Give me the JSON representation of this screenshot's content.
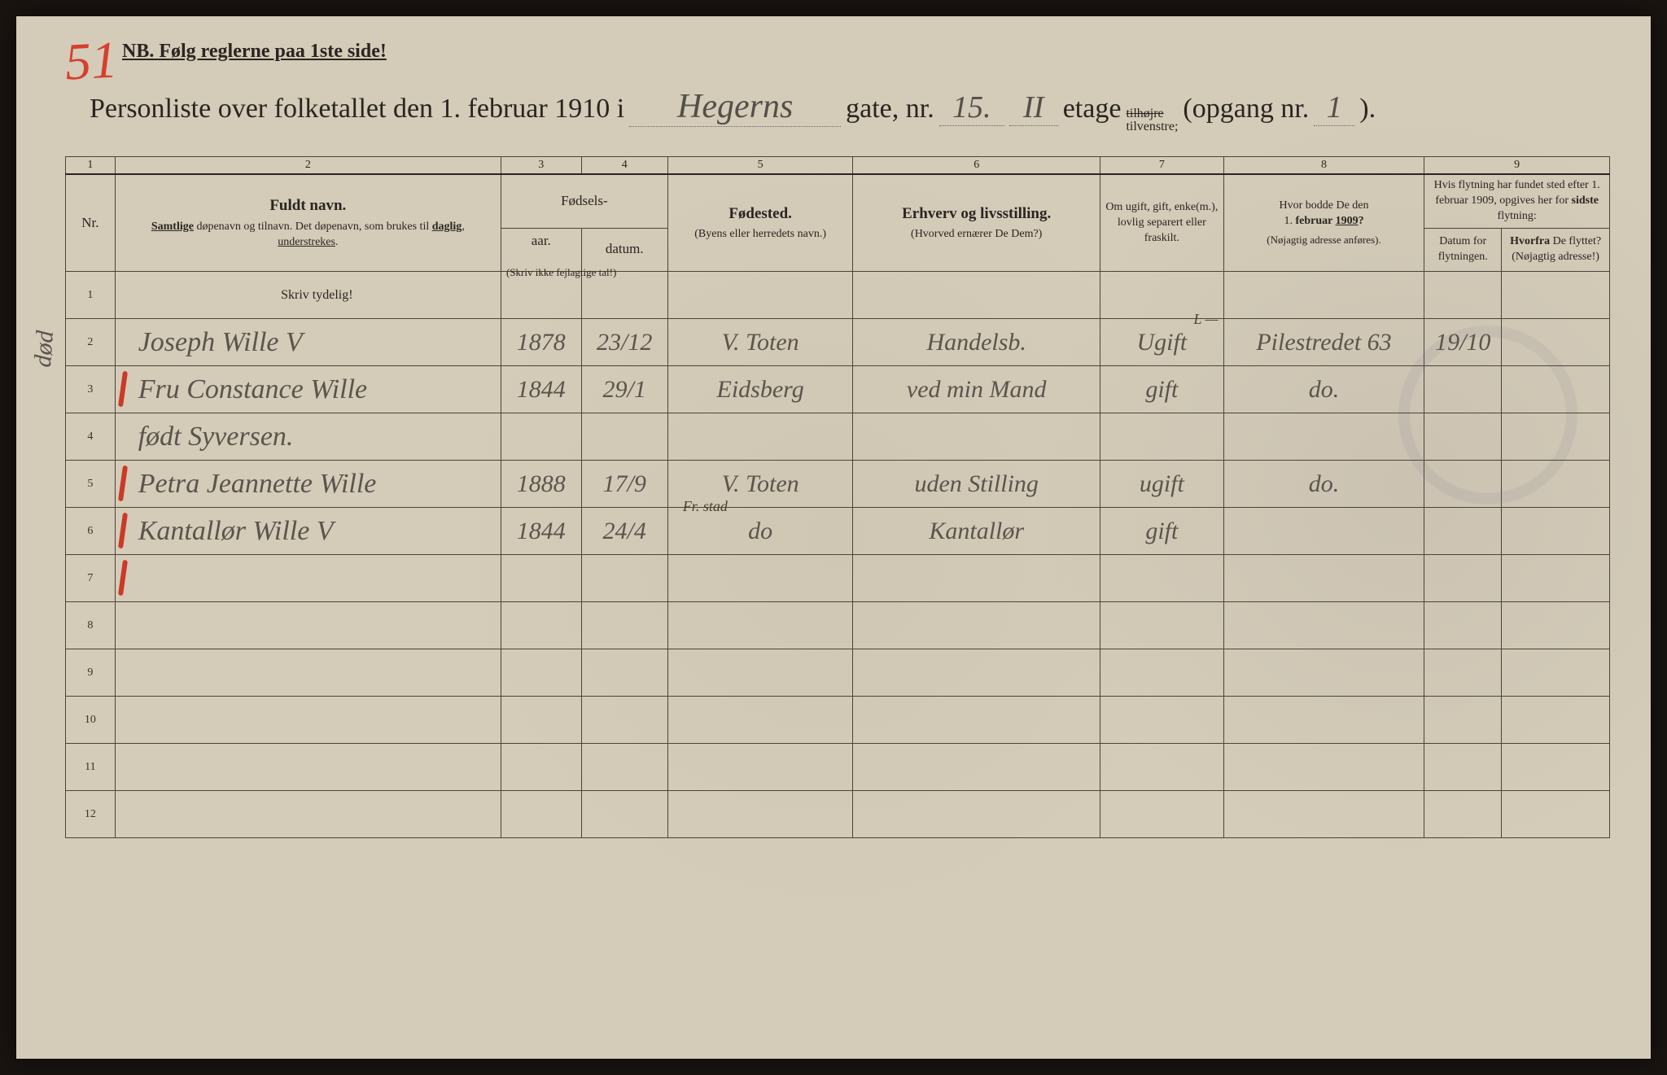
{
  "page_number_red": "51",
  "nb_text": "NB.  Følg reglerne paa 1ste side!",
  "title": {
    "pre": "Personliste over folketallet den 1. februar 1910 i",
    "street": "Hegerns",
    "gate_label": "gate, nr.",
    "house_nr": "15.",
    "etage": "II",
    "etage_label": "etage",
    "side_top": "tilhøjre",
    "side_bottom": "tilvenstre;",
    "opgang_label": "(opgang nr.",
    "opgang": "1",
    "close": ")."
  },
  "columns": {
    "c1": "1",
    "c2": "2",
    "c3": "3",
    "c4": "4",
    "c5": "5",
    "c6": "6",
    "c7": "7",
    "c8": "8",
    "c9": "9"
  },
  "headers": {
    "nr": "Nr.",
    "name_main": "Fuldt navn.",
    "name_sub": "Samtlige døpenavn og tilnavn. Det døpenavn, som brukes til daglig, understrekes.",
    "fodsels": "Fødsels-",
    "aar": "aar.",
    "datum": "datum.",
    "skriv_ikke": "(Skriv ikke fejlagtige tal!)",
    "fodested_main": "Fødested.",
    "fodested_sub": "(Byens eller herredets navn.)",
    "erhverv_main": "Erhverv og livsstilling.",
    "erhverv_sub": "(Hvorved ernærer De Dem?)",
    "civil": "Om ugift, gift, enke(m.), lovlig separert eller fraskilt.",
    "hvor_main": "Hvor bodde De den 1. februar 1909?",
    "hvor_sub": "(Nøjagtig adresse anføres).",
    "flyt_main": "Hvis flytning har fundet sted efter 1. februar 1909, opgives her for sidste flytning:",
    "flyt_datum": "Datum for flytningen.",
    "flyt_hvorfra": "Hvorfra De flyttet? (Nøjagtig adresse!)"
  },
  "skriv_tydelig": "Skriv tydelig!",
  "rows": [
    {
      "nr": "1",
      "name": "",
      "aar": "",
      "datum": "",
      "sted": "",
      "erhverv": "",
      "civil": "",
      "hvor": "",
      "flyt_d": "",
      "flyt_h": ""
    },
    {
      "nr": "2",
      "name": "Joseph Wille",
      "name_suffix": "V",
      "aar": "1878",
      "datum": "23/12",
      "sted": "V. Toten",
      "erhverv": "Handelsb.",
      "civil": "Ugift",
      "civil_note": "L —",
      "hvor": "Pilestredet 63",
      "flyt_d": "19/10",
      "flyt_h": "",
      "tick": false
    },
    {
      "nr": "3",
      "name": "Fru Constance Wille",
      "aar": "1844",
      "datum": "29/1",
      "sted": "Eidsberg",
      "erhverv": "ved min Mand",
      "civil": "gift",
      "hvor": "do.",
      "flyt_d": "",
      "flyt_h": "",
      "tick": true
    },
    {
      "nr": "4",
      "name": "født Syversen.",
      "aar": "",
      "datum": "",
      "sted": "",
      "erhverv": "",
      "civil": "",
      "hvor": "",
      "flyt_d": "",
      "flyt_h": "",
      "tick": false
    },
    {
      "nr": "5",
      "name": "Petra Jeannette Wille",
      "aar": "1888",
      "datum": "17/9",
      "sted": "V. Toten",
      "erhverv": "uden Stilling",
      "civil": "ugift",
      "hvor": "do.",
      "flyt_d": "",
      "flyt_h": "",
      "tick": true
    },
    {
      "nr": "6",
      "name": "Kantallør   Wille",
      "name_suffix": "V",
      "aar": "1844",
      "datum": "24/4",
      "sted": "do",
      "sted_note": "Fr. stad",
      "erhverv": "Kantallør",
      "civil": "gift",
      "hvor": "",
      "flyt_d": "",
      "flyt_h": "",
      "tick": true
    },
    {
      "nr": "7",
      "name": "",
      "aar": "",
      "datum": "",
      "sted": "",
      "erhverv": "",
      "civil": "",
      "hvor": "",
      "flyt_d": "",
      "flyt_h": "",
      "tick": true
    },
    {
      "nr": "8"
    },
    {
      "nr": "9"
    },
    {
      "nr": "10"
    },
    {
      "nr": "11"
    },
    {
      "nr": "12"
    }
  ],
  "left_margin": "død",
  "colors": {
    "paper": "#d4cbb8",
    "ink": "#2a2520",
    "pencil": "#5a544c",
    "red": "#c93a28",
    "border": "#4a4438"
  },
  "col_widths_pct": [
    3.2,
    25,
    5.2,
    5.6,
    12,
    16,
    8,
    13,
    5,
    7
  ]
}
